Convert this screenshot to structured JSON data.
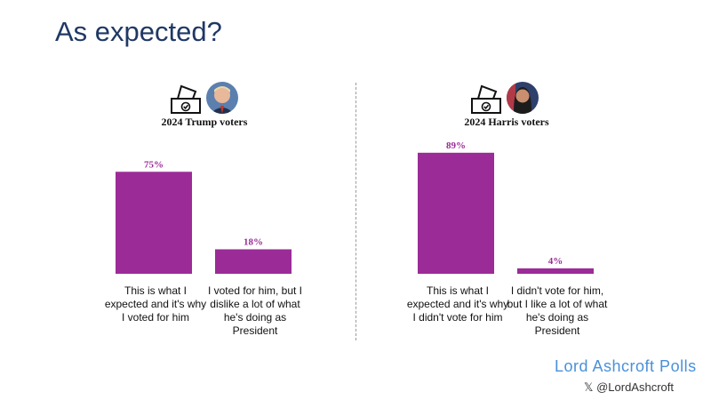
{
  "title": "As expected?",
  "footer": {
    "brand": "Lord Ashcroft Polls",
    "handle": "𝕏 @LordAshcroft"
  },
  "colors": {
    "bar": "#9b2b97",
    "title": "#1f3864",
    "brand": "#4a90d9"
  },
  "icons": [
    "ballot-box-icon",
    "candidate-photo"
  ],
  "chart_data": [
    {
      "type": "bar",
      "title": "2024 Trump voters",
      "categories": [
        "This is what I expected and it's why I voted for him",
        "I voted for him, but I dislike a lot of what he's doing as President"
      ],
      "values": [
        75,
        18
      ],
      "data_labels": [
        "75%",
        "18%"
      ],
      "unit": "%",
      "ylim": [
        0,
        100
      ],
      "grid": false
    },
    {
      "type": "bar",
      "title": "2024 Harris voters",
      "categories": [
        "This is what I expected and it's why I didn't vote for him",
        "I didn't vote for him, but I like a lot of what he's doing as President"
      ],
      "values": [
        89,
        4
      ],
      "data_labels": [
        "89%",
        "4%"
      ],
      "unit": "%",
      "ylim": [
        0,
        100
      ],
      "grid": false
    }
  ]
}
